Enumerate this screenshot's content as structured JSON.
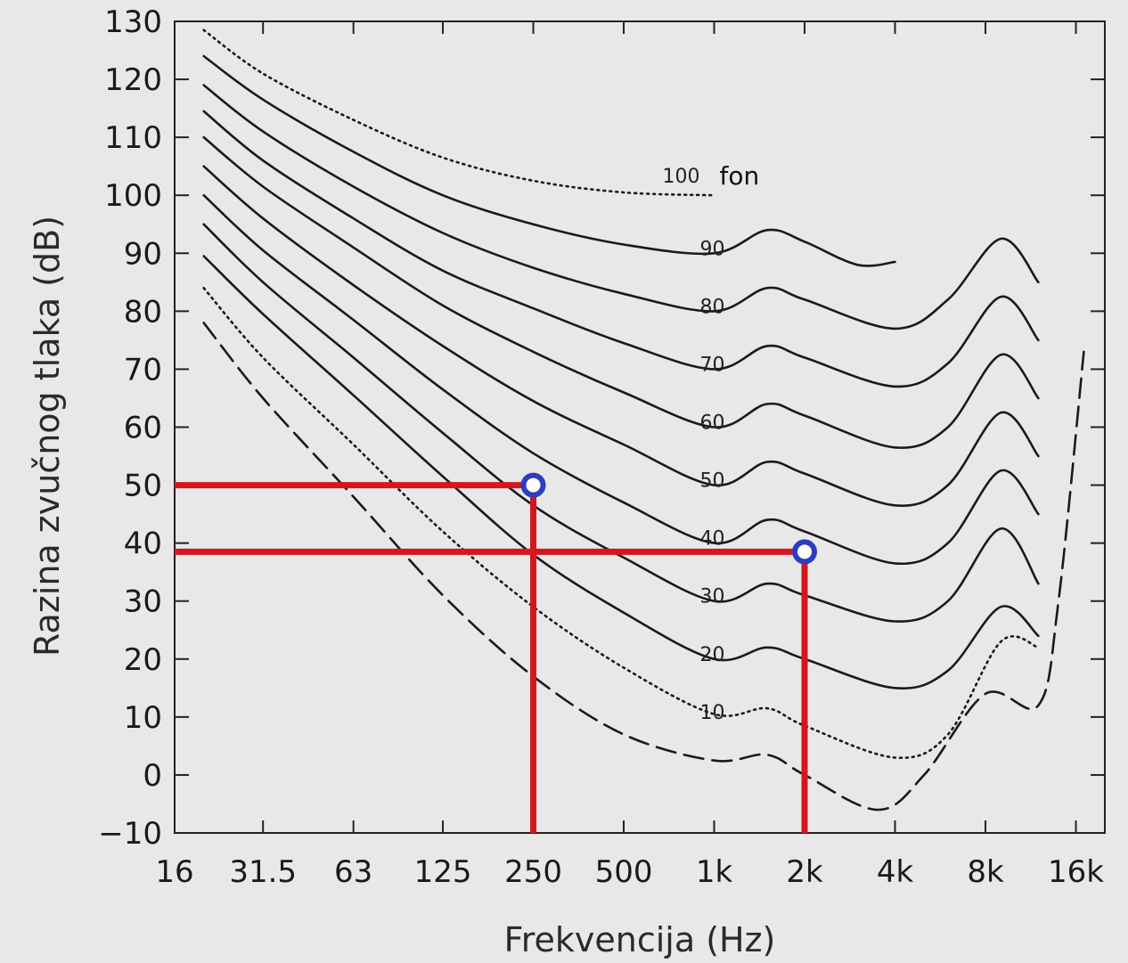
{
  "chart_data": {
    "type": "line",
    "xlabel": "Frekvencija (Hz)",
    "ylabel": "Razina zvučnog tlaka (dB)",
    "x_scale": "log2",
    "xlim": [
      16,
      20000
    ],
    "ylim": [
      -10,
      130
    ],
    "x_ticks": [
      {
        "value": 16,
        "label": "16"
      },
      {
        "value": 31.5,
        "label": "31.5"
      },
      {
        "value": 63,
        "label": "63"
      },
      {
        "value": 125,
        "label": "125"
      },
      {
        "value": 250,
        "label": "250"
      },
      {
        "value": 500,
        "label": "500"
      },
      {
        "value": 1000,
        "label": "1k"
      },
      {
        "value": 2000,
        "label": "2k"
      },
      {
        "value": 4000,
        "label": "4k"
      },
      {
        "value": 8000,
        "label": "8k"
      },
      {
        "value": 16000,
        "label": "16k"
      }
    ],
    "y_ticks": [
      {
        "value": 130,
        "label": "130"
      },
      {
        "value": 120,
        "label": "120"
      },
      {
        "value": 110,
        "label": "110"
      },
      {
        "value": 100,
        "label": "100"
      },
      {
        "value": 90,
        "label": "90"
      },
      {
        "value": 80,
        "label": "80"
      },
      {
        "value": 70,
        "label": "70"
      },
      {
        "value": 60,
        "label": "60"
      },
      {
        "value": 50,
        "label": "50"
      },
      {
        "value": 40,
        "label": "40"
      },
      {
        "value": 30,
        "label": "30"
      },
      {
        "value": 20,
        "label": "20"
      },
      {
        "value": 10,
        "label": "10"
      },
      {
        "value": 0,
        "label": "0"
      },
      {
        "value": -10,
        "label": "−10"
      }
    ],
    "unit_label": "fon",
    "series": [
      {
        "label": "100",
        "style": "dotted",
        "x": [
          20,
          31.5,
          63,
          125,
          250,
          500,
          1000
        ],
        "y": [
          128.5,
          121,
          113,
          106.5,
          102.5,
          100.5,
          100
        ]
      },
      {
        "label": "90",
        "style": "solid",
        "x": [
          20,
          31.5,
          63,
          125,
          250,
          500,
          1000,
          1500,
          2000,
          3000,
          4000
        ],
        "y": [
          124,
          116.5,
          107.5,
          100,
          95,
          91.5,
          90,
          94,
          92,
          88,
          88.5
        ]
      },
      {
        "label": "80",
        "style": "solid",
        "x": [
          20,
          31.5,
          63,
          125,
          250,
          500,
          1000,
          1500,
          2000,
          4000,
          6000,
          9000,
          12000
        ],
        "y": [
          119,
          111,
          101.5,
          93.5,
          87.5,
          83,
          80,
          84,
          82,
          77,
          82,
          92.5,
          85
        ]
      },
      {
        "label": "70",
        "style": "solid",
        "x": [
          20,
          31.5,
          63,
          125,
          250,
          500,
          1000,
          1500,
          2000,
          4000,
          6000,
          9000,
          12000
        ],
        "y": [
          114.5,
          106,
          96,
          87,
          80.5,
          74.5,
          70,
          74,
          72,
          67,
          71,
          82.5,
          75
        ]
      },
      {
        "label": "60",
        "style": "solid",
        "x": [
          20,
          31.5,
          63,
          125,
          250,
          500,
          1000,
          1500,
          2000,
          4000,
          6000,
          9000,
          12000
        ],
        "y": [
          110,
          101.5,
          91,
          81,
          73,
          66,
          60,
          64,
          62,
          56.5,
          60,
          72.5,
          65
        ]
      },
      {
        "label": "50",
        "style": "solid",
        "x": [
          20,
          31.5,
          63,
          125,
          250,
          500,
          1000,
          1500,
          2000,
          4000,
          6000,
          9000,
          12000
        ],
        "y": [
          105,
          96,
          84.5,
          74,
          64.5,
          57,
          50,
          54,
          52,
          46.5,
          50,
          62.5,
          55
        ]
      },
      {
        "label": "40",
        "style": "solid",
        "x": [
          20,
          31.5,
          63,
          125,
          250,
          500,
          1000,
          1500,
          2000,
          4000,
          6000,
          9000,
          12000
        ],
        "y": [
          100,
          90.5,
          78.5,
          66.5,
          55.5,
          47,
          40,
          44,
          42,
          36.5,
          40,
          52.5,
          45
        ]
      },
      {
        "label": "30",
        "style": "solid",
        "x": [
          20,
          31.5,
          63,
          125,
          250,
          500,
          1000,
          1500,
          2000,
          4000,
          6000,
          9000,
          12000
        ],
        "y": [
          95,
          85,
          72,
          59,
          46.5,
          37.5,
          30,
          33,
          31,
          26.5,
          30,
          42.5,
          33
        ]
      },
      {
        "label": "20",
        "style": "solid",
        "x": [
          20,
          31.5,
          63,
          125,
          250,
          500,
          1000,
          1500,
          2000,
          4000,
          6000,
          9000,
          12000
        ],
        "y": [
          89.5,
          79.5,
          65.5,
          51.5,
          38,
          28,
          20,
          22,
          20,
          15,
          18,
          29,
          24
        ]
      },
      {
        "label": "10",
        "style": "dotted",
        "x": [
          20,
          31.5,
          63,
          125,
          250,
          500,
          1000,
          1500,
          2000,
          4000,
          6000,
          9000,
          12000
        ],
        "y": [
          84,
          72,
          57,
          42,
          29,
          18.5,
          10.5,
          11.5,
          8.5,
          3,
          7,
          23,
          22
        ]
      },
      {
        "label": "",
        "style": "dashed",
        "x": [
          20,
          31.5,
          63,
          125,
          250,
          500,
          1000,
          1500,
          2000,
          3500,
          5000,
          8000,
          12000,
          14000,
          17000
        ],
        "y": [
          78,
          65,
          48,
          31,
          17,
          7,
          2.5,
          3.5,
          0,
          -6,
          0,
          14,
          12,
          30,
          73
        ]
      }
    ],
    "markers": [
      {
        "x": 250,
        "y": 50,
        "color": "#2b3ec0"
      },
      {
        "x": 2000,
        "y": 38.5,
        "color": "#2b3ec0"
      }
    ],
    "guide_lines": {
      "color": "#d4171f",
      "points": [
        {
          "x": 250,
          "y": 50
        },
        {
          "x": 2000,
          "y": 38.5
        }
      ]
    }
  }
}
